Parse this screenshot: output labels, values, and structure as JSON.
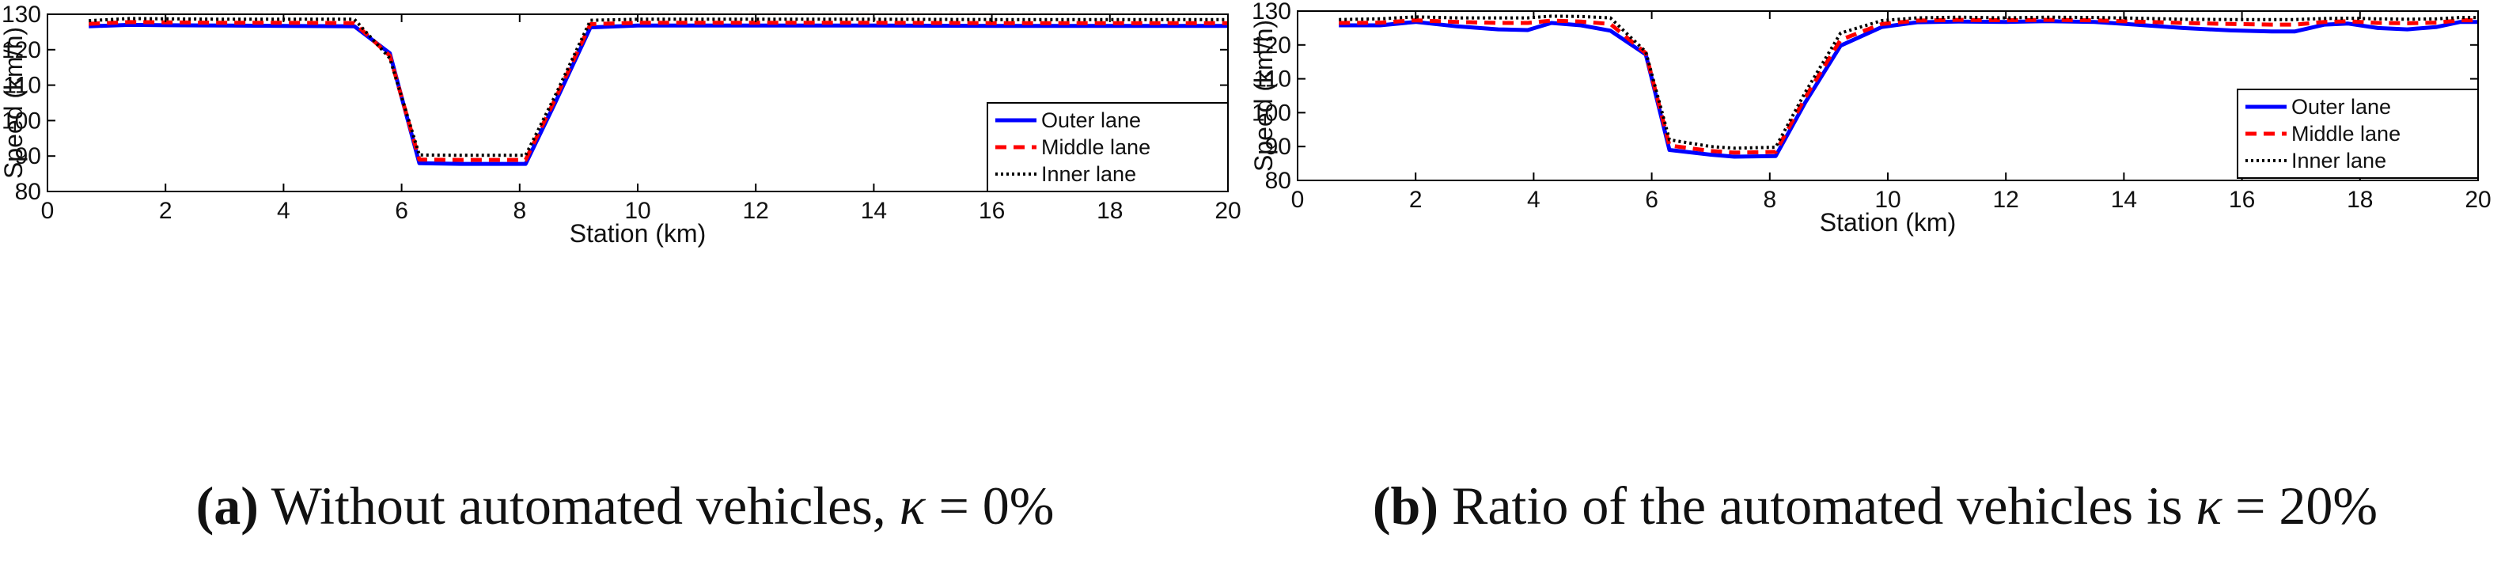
{
  "chart_data": [
    {
      "id": "a",
      "type": "line",
      "caption_label": "(a)",
      "caption_prefix": "Without automated vehicles, ",
      "caption_kappa": "κ",
      "caption_suffix": " = 0%",
      "xlabel": "Station (km)",
      "ylabel": "Speed (km/h)",
      "xlim": [
        0,
        20
      ],
      "ylim": [
        80,
        130
      ],
      "xticks": [
        0,
        2,
        4,
        6,
        8,
        10,
        12,
        14,
        16,
        18,
        20
      ],
      "yticks": [
        80,
        90,
        100,
        110,
        120,
        130
      ],
      "legend_position": "bottom-right",
      "series": [
        {
          "name": "Outer lane",
          "color": "#0000ff",
          "style": "solid",
          "x": [
            0.7,
            1.4,
            2.0,
            3.0,
            4.0,
            5.2,
            5.8,
            6.3,
            7.0,
            8.1,
            8.6,
            9.2,
            10.0,
            12.0,
            14.0,
            16.0,
            18.0,
            20.0
          ],
          "y": [
            126.6,
            127.0,
            126.9,
            126.8,
            126.7,
            126.6,
            119.0,
            88.0,
            87.8,
            87.8,
            105.0,
            126.3,
            126.8,
            126.8,
            126.8,
            126.7,
            126.7,
            126.7
          ]
        },
        {
          "name": "Middle lane",
          "color": "#ff0000",
          "style": "dashed",
          "x": [
            0.7,
            1.4,
            2.0,
            3.0,
            4.0,
            5.2,
            5.8,
            6.3,
            7.0,
            8.1,
            8.6,
            9.2,
            10.0,
            12.0,
            14.0,
            16.0,
            18.0,
            20.0
          ],
          "y": [
            127.3,
            127.8,
            127.7,
            127.6,
            127.6,
            127.5,
            118.3,
            89.0,
            88.9,
            88.9,
            106.0,
            127.2,
            127.6,
            127.6,
            127.6,
            127.5,
            127.5,
            127.5
          ]
        },
        {
          "name": "Inner lane",
          "color": "#000000",
          "style": "dotted",
          "x": [
            0.7,
            1.4,
            2.0,
            3.0,
            4.0,
            5.2,
            5.8,
            6.3,
            7.0,
            8.1,
            8.6,
            9.2,
            10.0,
            12.0,
            14.0,
            16.0,
            18.0,
            20.0
          ],
          "y": [
            128.2,
            128.8,
            128.7,
            128.6,
            128.6,
            128.6,
            117.6,
            90.3,
            90.2,
            90.2,
            107.0,
            128.3,
            128.6,
            128.6,
            128.6,
            128.5,
            128.5,
            128.5
          ]
        }
      ]
    },
    {
      "id": "b",
      "type": "line",
      "caption_label": "(b)",
      "caption_prefix": "Ratio of the automated vehicles is ",
      "caption_kappa": "κ",
      "caption_suffix": " = 20%",
      "xlabel": "Station (km)",
      "ylabel": "Speed (km/h)",
      "xlim": [
        0,
        20
      ],
      "ylim": [
        80,
        130
      ],
      "xticks": [
        0,
        2,
        4,
        6,
        8,
        10,
        12,
        14,
        16,
        18,
        20
      ],
      "yticks": [
        80,
        90,
        100,
        110,
        120,
        130
      ],
      "legend_position": "bottom-right",
      "series": [
        {
          "name": "Outer lane",
          "color": "#0000ff",
          "style": "solid",
          "x": [
            0.7,
            1.4,
            2.0,
            2.7,
            3.4,
            3.9,
            4.3,
            4.8,
            5.3,
            5.9,
            6.3,
            7.0,
            7.4,
            8.1,
            8.6,
            9.2,
            9.9,
            10.5,
            11.2,
            12.0,
            12.7,
            13.5,
            14.2,
            15.0,
            15.8,
            16.5,
            16.9,
            17.4,
            17.8,
            18.3,
            18.8,
            19.3,
            19.7,
            20.0
          ],
          "y": [
            125.8,
            125.8,
            126.8,
            125.5,
            124.6,
            124.4,
            126.5,
            125.8,
            124.2,
            117.2,
            89.0,
            87.6,
            87.0,
            87.2,
            103.0,
            119.8,
            125.3,
            126.7,
            126.9,
            126.8,
            127.0,
            126.8,
            126.0,
            125.0,
            124.3,
            124.0,
            124.0,
            126.0,
            126.3,
            125.0,
            124.6,
            125.3,
            126.8,
            126.8
          ]
        },
        {
          "name": "Middle lane",
          "color": "#ff0000",
          "style": "dashed",
          "x": [
            0.7,
            1.4,
            2.0,
            2.7,
            3.4,
            3.9,
            4.3,
            4.8,
            5.3,
            5.9,
            6.3,
            7.0,
            7.4,
            8.1,
            8.6,
            9.2,
            9.9,
            10.5,
            11.2,
            12.0,
            12.7,
            13.5,
            14.2,
            15.0,
            15.8,
            16.5,
            16.9,
            17.4,
            17.8,
            18.3,
            18.8,
            19.3,
            19.7,
            20.0
          ],
          "y": [
            126.5,
            126.6,
            127.3,
            126.8,
            126.5,
            126.5,
            127.2,
            126.9,
            126.2,
            117.6,
            90.3,
            88.7,
            88.2,
            88.4,
            104.5,
            121.5,
            126.2,
            127.2,
            127.4,
            127.3,
            127.4,
            127.3,
            126.9,
            126.5,
            126.2,
            126.0,
            126.0,
            126.8,
            127.0,
            126.5,
            126.4,
            126.6,
            127.3,
            127.3
          ]
        },
        {
          "name": "Inner lane",
          "color": "#000000",
          "style": "dotted",
          "x": [
            0.7,
            1.4,
            2.0,
            2.7,
            3.4,
            3.9,
            4.3,
            4.8,
            5.3,
            5.9,
            6.3,
            7.0,
            7.4,
            8.1,
            8.6,
            9.2,
            9.9,
            10.5,
            11.2,
            12.0,
            12.7,
            13.5,
            14.2,
            15.0,
            15.8,
            16.5,
            16.9,
            17.4,
            17.8,
            18.3,
            18.8,
            19.3,
            19.7,
            20.0
          ],
          "y": [
            127.5,
            127.7,
            128.3,
            128.0,
            128.0,
            128.0,
            128.5,
            128.4,
            128.0,
            118.0,
            92.0,
            90.0,
            89.5,
            89.8,
            106.0,
            123.5,
            127.2,
            128.0,
            128.2,
            128.0,
            128.2,
            128.1,
            127.9,
            127.6,
            127.5,
            127.5,
            127.5,
            127.8,
            127.9,
            127.7,
            127.6,
            127.7,
            128.1,
            128.1
          ]
        }
      ]
    }
  ]
}
